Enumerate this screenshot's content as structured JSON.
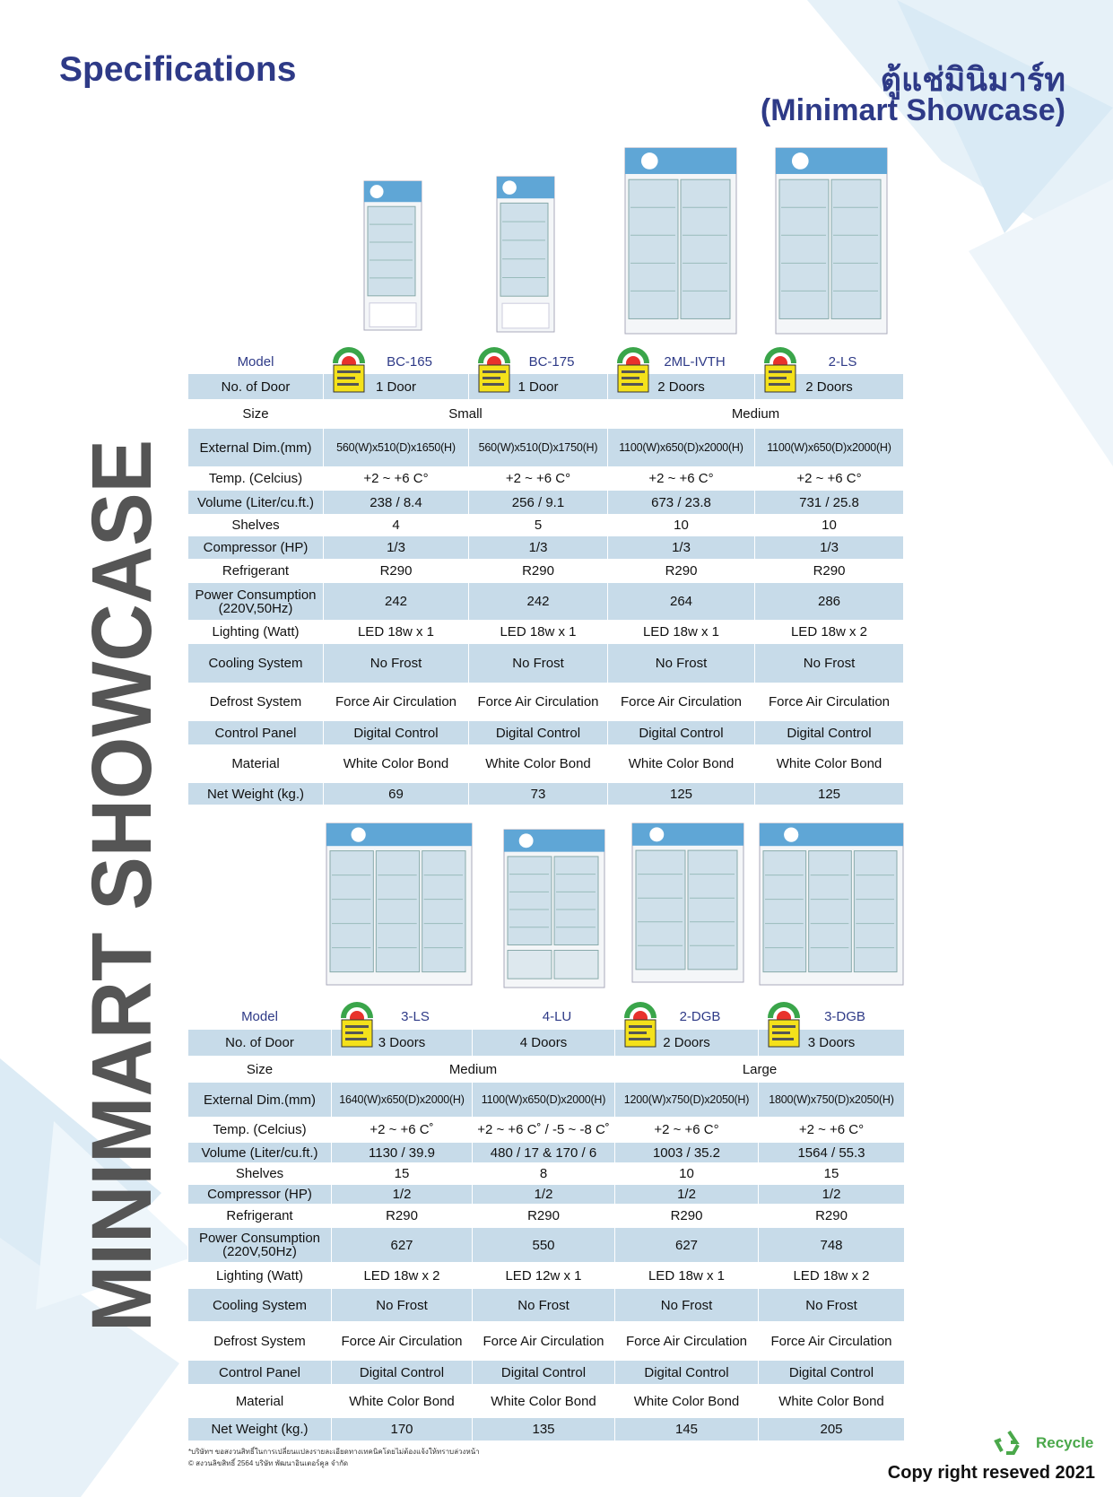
{
  "header": {
    "title": "Specifications",
    "title_thai": "ตู้แช่มินิมาร์ท",
    "subtitle": "(Minimart Showcase)"
  },
  "side_text": "MINIMART SHOWCASE",
  "tables": [
    {
      "rows": [
        {
          "label": "Model",
          "values": [
            "BC-165",
            "BC-175",
            "2ML-IVTH",
            "2-LS"
          ]
        },
        {
          "label": "No. of Door",
          "values": [
            "1 Door",
            "1 Door",
            "2 Doors",
            "2 Doors"
          ]
        },
        {
          "label": "Size",
          "values": [
            "Small",
            "Medium"
          ]
        },
        {
          "label": "External Dim.(mm)",
          "values": [
            "560(W)x510(D)x1650(H)",
            "560(W)x510(D)x1750(H)",
            "1100(W)x650(D)x2000(H)",
            "1100(W)x650(D)x2000(H)"
          ]
        },
        {
          "label": "Temp. (Celcius)",
          "values": [
            "+2 ~ +6 C°",
            "+2 ~ +6 C°",
            "+2 ~ +6 C°",
            "+2 ~ +6 C°"
          ]
        },
        {
          "label": "Volume (Liter/cu.ft.)",
          "values": [
            "238 / 8.4",
            "256 / 9.1",
            "673 / 23.8",
            "731 / 25.8"
          ]
        },
        {
          "label": "Shelves",
          "values": [
            "4",
            "5",
            "10",
            "10"
          ]
        },
        {
          "label": "Compressor (HP)",
          "values": [
            "1/3",
            "1/3",
            "1/3",
            "1/3"
          ]
        },
        {
          "label": "Refrigerant",
          "values": [
            "R290",
            "R290",
            "R290",
            "R290"
          ]
        },
        {
          "label": "Power Consumption\n(220V,50Hz)",
          "values": [
            "242",
            "242",
            "264",
            "286"
          ]
        },
        {
          "label": "Lighting (Watt)",
          "values": [
            "LED 18w x 1",
            "LED 18w x 1",
            "LED  18w x 1",
            "LED  18w x 2"
          ]
        },
        {
          "label": "Cooling System",
          "values": [
            "No Frost",
            "No Frost",
            "No Frost",
            "No Frost"
          ]
        },
        {
          "label": "Defrost System",
          "values": [
            "Force Air Circulation",
            "Force Air Circulation",
            "Force Air Circulation",
            "Force Air Circulation"
          ]
        },
        {
          "label": "Control Panel",
          "values": [
            "Digital Control",
            "Digital Control",
            "Digital Control",
            "Digital Control"
          ]
        },
        {
          "label": "Material",
          "values": [
            "White Color Bond",
            "White Color Bond",
            "White Color Bond",
            "White Color Bond"
          ]
        },
        {
          "label": "Net Weight (kg.)",
          "values": [
            "69",
            "73",
            "125",
            "125"
          ]
        }
      ]
    },
    {
      "rows": [
        {
          "label": "Model",
          "values": [
            "3-LS",
            "4-LU",
            "2-DGB",
            "3-DGB"
          ]
        },
        {
          "label": "No. of Door",
          "values": [
            "3 Doors",
            "4 Doors",
            "2 Doors",
            "3 Doors"
          ]
        },
        {
          "label": "Size",
          "values": [
            "Medium",
            "Large"
          ]
        },
        {
          "label": "External Dim.(mm)",
          "values": [
            "1640(W)x650(D)x2000(H)",
            "1100(W)x650(D)x2000(H)",
            "1200(W)x750(D)x2050(H)",
            "1800(W)x750(D)x2050(H)"
          ]
        },
        {
          "label": "Temp. (Celcius)",
          "values": [
            "+2 ~ +6 C˚",
            "+2 ~ +6 C˚ / -5 ~ -8 C˚",
            "+2 ~ +6 C°",
            "+2 ~ +6 C°"
          ]
        },
        {
          "label": "Volume (Liter/cu.ft.)",
          "values": [
            "1130 / 39.9",
            "480 / 17 & 170 / 6",
            "1003 / 35.2",
            "1564 / 55.3"
          ]
        },
        {
          "label": "Shelves",
          "values": [
            "15",
            "8",
            "10",
            "15"
          ]
        },
        {
          "label": "Compressor (HP)",
          "values": [
            "1/2",
            "1/2",
            "1/2",
            "1/2"
          ]
        },
        {
          "label": "Refrigerant",
          "values": [
            "R290",
            "R290",
            "R290",
            "R290"
          ]
        },
        {
          "label": "Power Consumption\n(220V,50Hz)",
          "values": [
            "627",
            "550",
            "627",
            "748"
          ]
        },
        {
          "label": "Lighting (Watt)",
          "values": [
            "LED 18w x 2",
            "LED 12w x 1",
            "LED  18w x 1",
            "LED  18w x 2"
          ]
        },
        {
          "label": "Cooling System",
          "values": [
            "No Frost",
            "No Frost",
            "No Frost",
            "No Frost"
          ]
        },
        {
          "label": "Defrost System",
          "values": [
            "Force Air Circulation",
            "Force Air Circulation",
            "Force Air Circulation",
            "Force Air Circulation"
          ]
        },
        {
          "label": "Control Panel",
          "values": [
            "Digital Control",
            "Digital Control",
            "Digital Control",
            "Digital Control"
          ]
        },
        {
          "label": "Material",
          "values": [
            "White Color Bond",
            "White Color Bond",
            "White Color Bond",
            "White Color Bond"
          ]
        },
        {
          "label": "Net Weight (kg.)",
          "values": [
            "170",
            "135",
            "145",
            "205"
          ]
        }
      ]
    }
  ],
  "footer": {
    "notes": [
      "*บริษัทฯ ขอสงวนสิทธิ์ในการเปลี่ยนแปลงรายละเอียดทางเทคนิคโดยไม่ต้องแจ้งให้ทราบล่วงหน้า",
      "© สงวนลิขสิทธิ์ 2564 บริษัท พัฒนาอินเตอร์คูล จำกัด"
    ],
    "recycle": "Recycle",
    "copyright": "Copy right reseved 2021"
  }
}
